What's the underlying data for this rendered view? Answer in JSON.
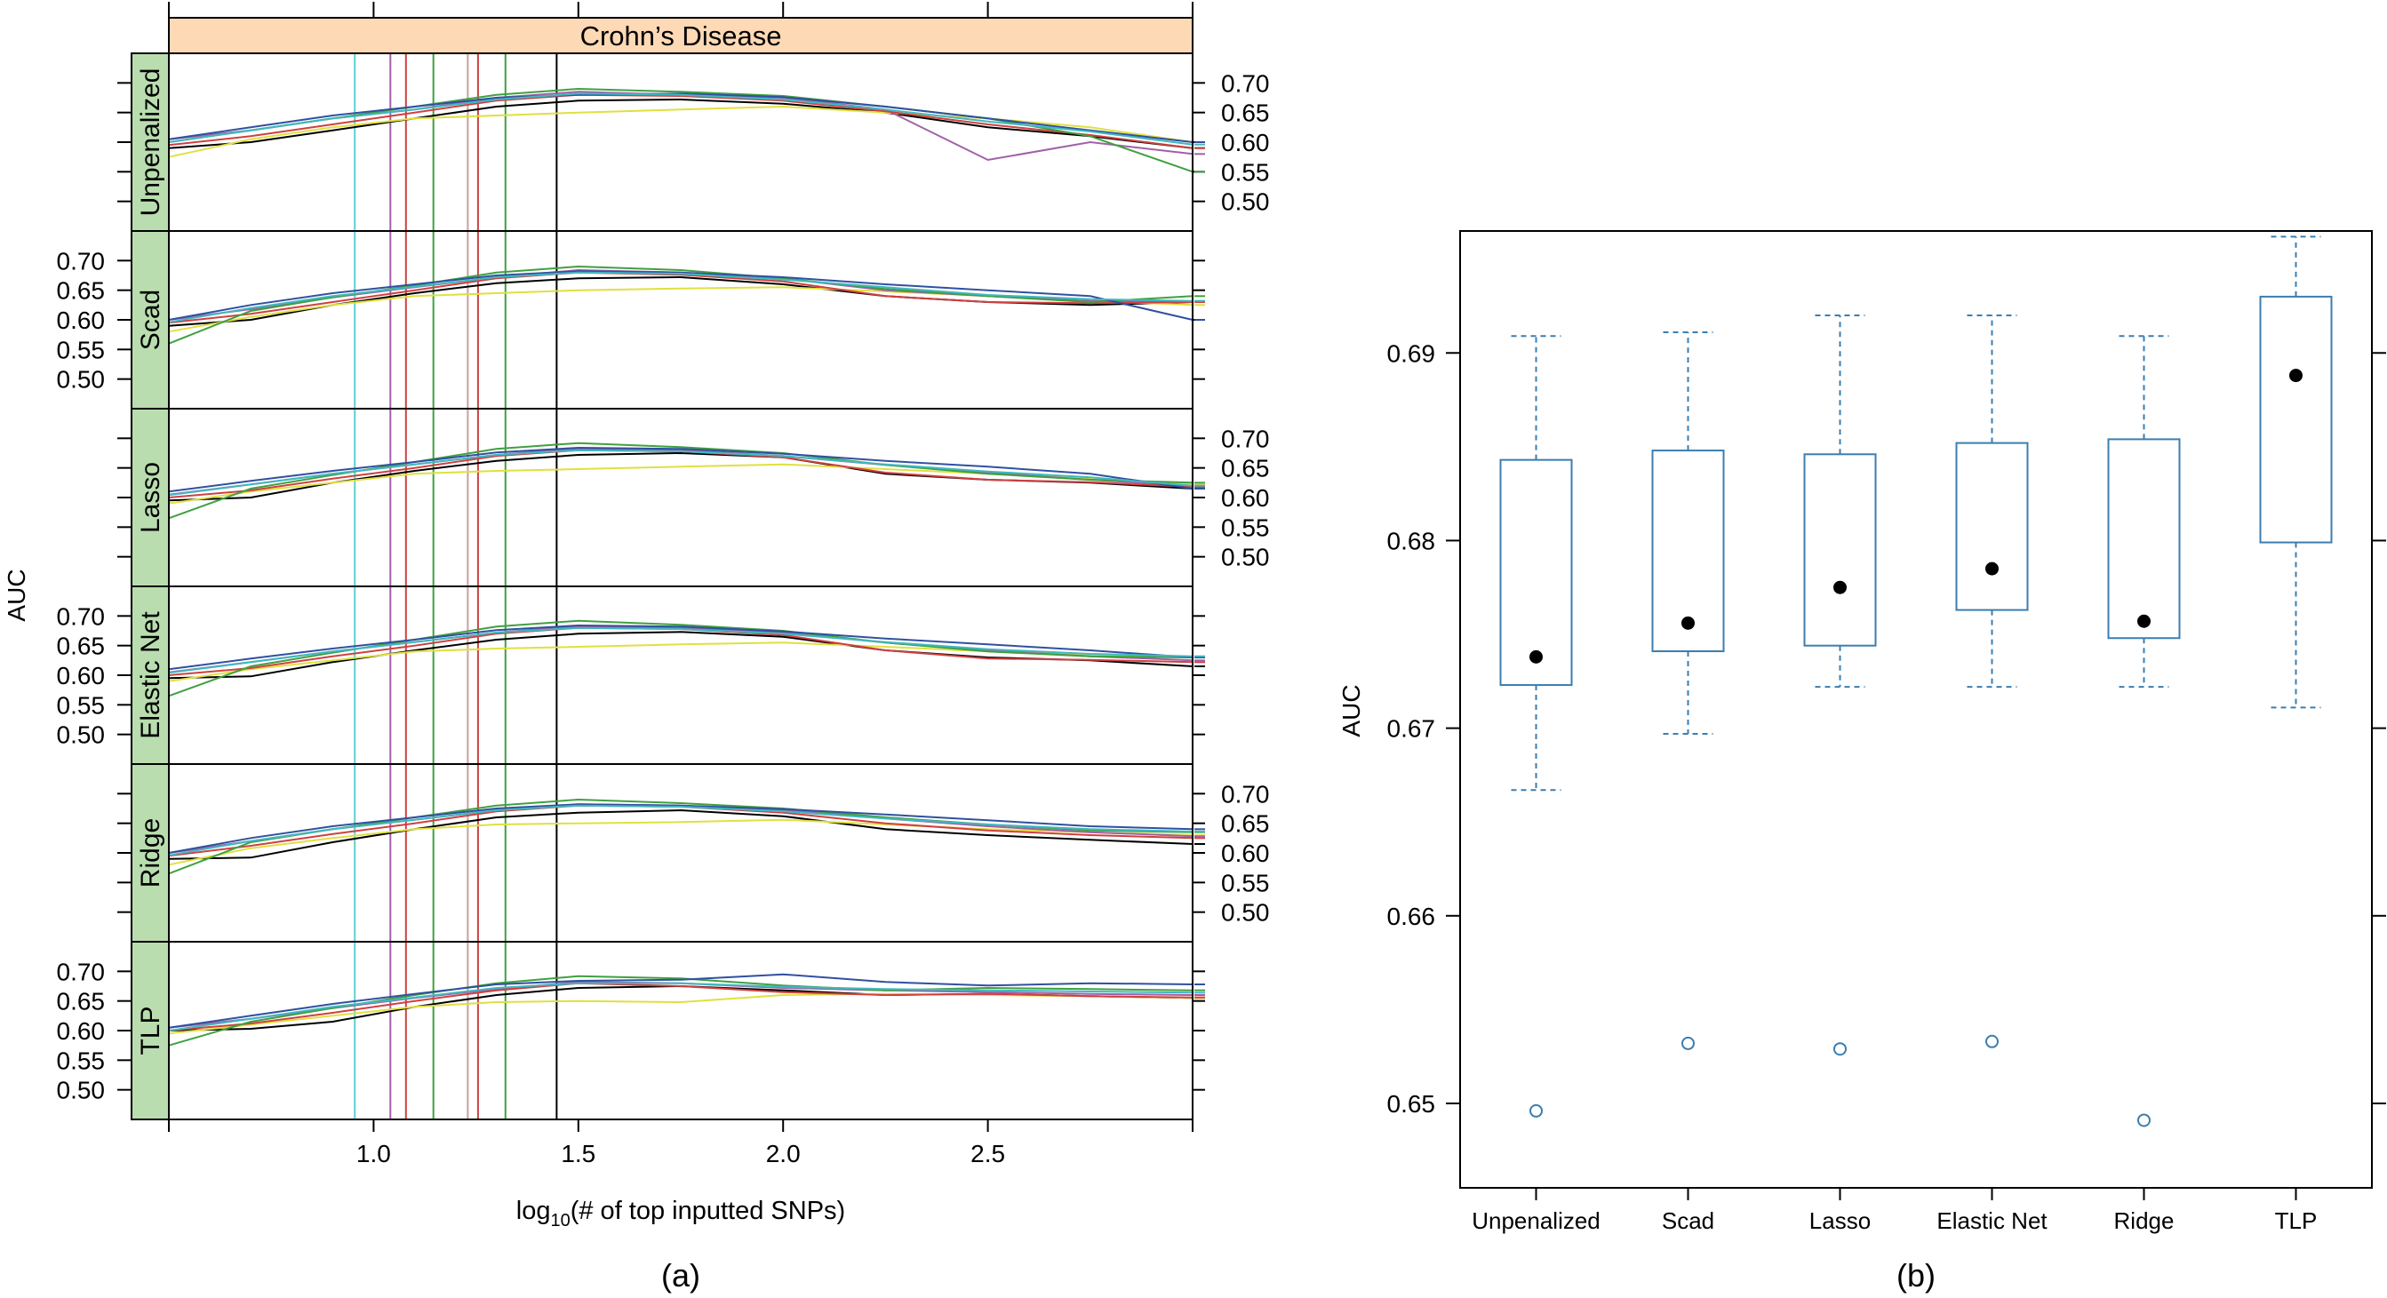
{
  "panels": {
    "a_label": "(a)",
    "b_label": "(b)"
  },
  "colors": {
    "strip_header": "#FDD9B5",
    "strip_side": "#B9DDAF",
    "box": "#3A7EB0"
  },
  "chart_data": [
    {
      "type": "line",
      "strip_title": "Crohn’s Disease",
      "xlabel_prefix": "log",
      "xlabel_sub": "10",
      "xlabel_suffix": "(# of top inputted SNPs)",
      "ylabel": "AUC",
      "xlim": [
        0.5,
        3.0
      ],
      "ylim": [
        0.45,
        0.75
      ],
      "x_ticks": [
        1.0,
        1.5,
        2.0,
        2.5
      ],
      "x_tick_labels": [
        "1.0",
        "1.5",
        "2.0",
        "2.5"
      ],
      "y_ticks": [
        0.7,
        0.65,
        0.6,
        0.55,
        0.5
      ],
      "y_tick_labels": [
        "0.70",
        "0.65",
        "0.60",
        "0.55",
        "0.50"
      ],
      "x": [
        0.5,
        0.7,
        0.9,
        1.1,
        1.3,
        1.5,
        1.75,
        2.0,
        2.25,
        2.5,
        2.75,
        3.0
      ],
      "selected_x": [
        {
          "x": 0.954,
          "color": "#5FD0D0"
        },
        {
          "x": 1.041,
          "color": "#A060A8"
        },
        {
          "x": 1.079,
          "color": "#D04040"
        },
        {
          "x": 1.146,
          "color": "#40A040"
        },
        {
          "x": 1.23,
          "color": "#C8A0A0"
        },
        {
          "x": 1.255,
          "color": "#D04040"
        },
        {
          "x": 1.322,
          "color": "#40A040"
        },
        {
          "x": 1.447,
          "color": "#000000"
        }
      ],
      "panels": [
        {
          "name": "Unpenalized",
          "series": [
            {
              "color": "#000000",
              "values": [
                0.59,
                0.6,
                0.62,
                0.64,
                0.66,
                0.67,
                0.672,
                0.665,
                0.65,
                0.625,
                0.61,
                0.59
              ]
            },
            {
              "color": "#E0E040",
              "values": [
                0.575,
                0.605,
                0.625,
                0.64,
                0.645,
                0.65,
                0.655,
                0.66,
                0.65,
                0.64,
                0.625,
                0.6
              ]
            },
            {
              "color": "#A060A8",
              "values": [
                0.605,
                0.62,
                0.64,
                0.655,
                0.675,
                0.685,
                0.68,
                0.675,
                0.655,
                0.57,
                0.6,
                0.58
              ]
            },
            {
              "color": "#D04040",
              "values": [
                0.595,
                0.61,
                0.63,
                0.65,
                0.67,
                0.68,
                0.678,
                0.67,
                0.652,
                0.63,
                0.612,
                0.59
              ]
            },
            {
              "color": "#40A040",
              "values": [
                0.6,
                0.62,
                0.64,
                0.66,
                0.68,
                0.69,
                0.685,
                0.678,
                0.66,
                0.64,
                0.61,
                0.55
              ]
            },
            {
              "color": "#3050A0",
              "values": [
                0.605,
                0.625,
                0.645,
                0.66,
                0.675,
                0.68,
                0.682,
                0.676,
                0.66,
                0.64,
                0.62,
                0.6
              ]
            },
            {
              "color": "#40B8C0",
              "values": [
                0.6,
                0.62,
                0.64,
                0.655,
                0.672,
                0.682,
                0.68,
                0.672,
                0.655,
                0.635,
                0.618,
                0.596
              ]
            }
          ]
        },
        {
          "name": "Scad",
          "series": [
            {
              "color": "#000000",
              "values": [
                0.59,
                0.6,
                0.625,
                0.645,
                0.662,
                0.67,
                0.672,
                0.66,
                0.64,
                0.63,
                0.625,
                0.63
              ]
            },
            {
              "color": "#E0E040",
              "values": [
                0.58,
                0.605,
                0.625,
                0.64,
                0.645,
                0.65,
                0.653,
                0.655,
                0.648,
                0.64,
                0.632,
                0.625
              ]
            },
            {
              "color": "#A060A8",
              "values": [
                0.6,
                0.618,
                0.638,
                0.655,
                0.672,
                0.684,
                0.68,
                0.67,
                0.65,
                0.64,
                0.632,
                0.63
              ]
            },
            {
              "color": "#D04040",
              "values": [
                0.595,
                0.61,
                0.63,
                0.65,
                0.67,
                0.68,
                0.676,
                0.665,
                0.64,
                0.63,
                0.628,
                0.63
              ]
            },
            {
              "color": "#40A040",
              "values": [
                0.56,
                0.615,
                0.638,
                0.658,
                0.68,
                0.69,
                0.684,
                0.67,
                0.652,
                0.64,
                0.63,
                0.64
              ]
            },
            {
              "color": "#3050A0",
              "values": [
                0.6,
                0.625,
                0.645,
                0.66,
                0.675,
                0.682,
                0.68,
                0.672,
                0.66,
                0.65,
                0.64,
                0.6
              ]
            },
            {
              "color": "#40B8C0",
              "values": [
                0.596,
                0.62,
                0.64,
                0.656,
                0.672,
                0.68,
                0.678,
                0.668,
                0.655,
                0.642,
                0.635,
                0.632
              ]
            }
          ]
        },
        {
          "name": "Lasso",
          "series": [
            {
              "color": "#000000",
              "values": [
                0.595,
                0.6,
                0.625,
                0.645,
                0.662,
                0.672,
                0.675,
                0.668,
                0.64,
                0.63,
                0.625,
                0.615
              ]
            },
            {
              "color": "#E0E040",
              "values": [
                0.59,
                0.61,
                0.625,
                0.64,
                0.645,
                0.648,
                0.652,
                0.656,
                0.648,
                0.64,
                0.632,
                0.622
              ]
            },
            {
              "color": "#A060A8",
              "values": [
                0.605,
                0.622,
                0.64,
                0.656,
                0.672,
                0.683,
                0.68,
                0.67,
                0.655,
                0.642,
                0.63,
                0.62
              ]
            },
            {
              "color": "#D04040",
              "values": [
                0.6,
                0.612,
                0.632,
                0.65,
                0.67,
                0.68,
                0.678,
                0.668,
                0.642,
                0.63,
                0.626,
                0.618
              ]
            },
            {
              "color": "#40A040",
              "values": [
                0.565,
                0.615,
                0.638,
                0.66,
                0.682,
                0.692,
                0.685,
                0.675,
                0.655,
                0.64,
                0.63,
                0.625
              ]
            },
            {
              "color": "#3050A0",
              "values": [
                0.61,
                0.628,
                0.645,
                0.66,
                0.676,
                0.684,
                0.682,
                0.674,
                0.662,
                0.652,
                0.64,
                0.615
              ]
            },
            {
              "color": "#40B8C0",
              "values": [
                0.604,
                0.622,
                0.64,
                0.656,
                0.672,
                0.68,
                0.678,
                0.67,
                0.656,
                0.644,
                0.634,
                0.62
              ]
            }
          ]
        },
        {
          "name": "Elastic Net",
          "series": [
            {
              "color": "#000000",
              "values": [
                0.595,
                0.598,
                0.622,
                0.642,
                0.66,
                0.67,
                0.673,
                0.665,
                0.642,
                0.63,
                0.625,
                0.615
              ]
            },
            {
              "color": "#E0E040",
              "values": [
                0.59,
                0.61,
                0.625,
                0.64,
                0.645,
                0.648,
                0.652,
                0.655,
                0.648,
                0.64,
                0.635,
                0.63
              ]
            },
            {
              "color": "#A060A8",
              "values": [
                0.605,
                0.622,
                0.64,
                0.656,
                0.672,
                0.683,
                0.68,
                0.672,
                0.655,
                0.642,
                0.632,
                0.625
              ]
            },
            {
              "color": "#D04040",
              "values": [
                0.6,
                0.612,
                0.632,
                0.65,
                0.67,
                0.68,
                0.678,
                0.668,
                0.642,
                0.628,
                0.626,
                0.622
              ]
            },
            {
              "color": "#40A040",
              "values": [
                0.565,
                0.615,
                0.638,
                0.66,
                0.682,
                0.692,
                0.685,
                0.675,
                0.655,
                0.64,
                0.632,
                0.63
              ]
            },
            {
              "color": "#3050A0",
              "values": [
                0.61,
                0.628,
                0.645,
                0.66,
                0.676,
                0.684,
                0.682,
                0.674,
                0.662,
                0.652,
                0.642,
                0.63
              ]
            },
            {
              "color": "#40B8C0",
              "values": [
                0.604,
                0.622,
                0.64,
                0.656,
                0.672,
                0.68,
                0.678,
                0.67,
                0.656,
                0.644,
                0.636,
                0.632
              ]
            }
          ]
        },
        {
          "name": "Ridge",
          "series": [
            {
              "color": "#000000",
              "values": [
                0.59,
                0.592,
                0.618,
                0.64,
                0.66,
                0.668,
                0.672,
                0.662,
                0.64,
                0.63,
                0.622,
                0.615
              ]
            },
            {
              "color": "#E0E040",
              "values": [
                0.58,
                0.608,
                0.625,
                0.64,
                0.648,
                0.65,
                0.652,
                0.656,
                0.648,
                0.64,
                0.635,
                0.63
              ]
            },
            {
              "color": "#A060A8",
              "values": [
                0.6,
                0.62,
                0.64,
                0.656,
                0.672,
                0.682,
                0.68,
                0.672,
                0.658,
                0.645,
                0.635,
                0.628
              ]
            },
            {
              "color": "#D04040",
              "values": [
                0.595,
                0.612,
                0.632,
                0.65,
                0.67,
                0.68,
                0.678,
                0.668,
                0.65,
                0.638,
                0.63,
                0.625
              ]
            },
            {
              "color": "#40A040",
              "values": [
                0.565,
                0.618,
                0.64,
                0.66,
                0.68,
                0.69,
                0.684,
                0.675,
                0.66,
                0.648,
                0.638,
                0.635
              ]
            },
            {
              "color": "#3050A0",
              "values": [
                0.6,
                0.625,
                0.645,
                0.66,
                0.675,
                0.682,
                0.68,
                0.674,
                0.665,
                0.655,
                0.645,
                0.64
              ]
            },
            {
              "color": "#40B8C0",
              "values": [
                0.596,
                0.62,
                0.64,
                0.656,
                0.672,
                0.68,
                0.678,
                0.67,
                0.658,
                0.648,
                0.64,
                0.636
              ]
            }
          ]
        },
        {
          "name": "TLP",
          "series": [
            {
              "color": "#000000",
              "values": [
                0.6,
                0.603,
                0.615,
                0.64,
                0.66,
                0.672,
                0.675,
                0.668,
                0.66,
                0.662,
                0.658,
                0.655
              ]
            },
            {
              "color": "#E0E040",
              "values": [
                0.595,
                0.61,
                0.625,
                0.64,
                0.648,
                0.65,
                0.648,
                0.66,
                0.662,
                0.66,
                0.658,
                0.655
              ]
            },
            {
              "color": "#A060A8",
              "values": [
                0.605,
                0.62,
                0.638,
                0.655,
                0.67,
                0.682,
                0.68,
                0.672,
                0.668,
                0.665,
                0.662,
                0.66
              ]
            },
            {
              "color": "#D04040",
              "values": [
                0.6,
                0.612,
                0.63,
                0.65,
                0.668,
                0.68,
                0.675,
                0.665,
                0.66,
                0.662,
                0.658,
                0.656
              ]
            },
            {
              "color": "#40A040",
              "values": [
                0.575,
                0.615,
                0.638,
                0.66,
                0.68,
                0.692,
                0.688,
                0.676,
                0.668,
                0.672,
                0.67,
                0.668
              ]
            },
            {
              "color": "#3050A0",
              "values": [
                0.605,
                0.625,
                0.645,
                0.662,
                0.678,
                0.684,
                0.686,
                0.695,
                0.682,
                0.676,
                0.68,
                0.678
              ]
            },
            {
              "color": "#40B8C0",
              "values": [
                0.6,
                0.62,
                0.64,
                0.656,
                0.672,
                0.68,
                0.68,
                0.674,
                0.67,
                0.668,
                0.666,
                0.664
              ]
            }
          ]
        }
      ]
    },
    {
      "type": "box",
      "ylabel": "AUC",
      "ylim": [
        0.6455,
        0.6965
      ],
      "y_ticks": [
        0.65,
        0.66,
        0.67,
        0.68,
        0.69
      ],
      "y_tick_labels": [
        "0.65",
        "0.66",
        "0.67",
        "0.68",
        "0.69"
      ],
      "categories": [
        "Unpenalized",
        "Scad",
        "Lasso",
        "Elastic Net",
        "Ridge",
        "TLP"
      ],
      "boxes": [
        {
          "whisker_low": 0.6667,
          "q1": 0.6723,
          "median": 0.6738,
          "q3": 0.6843,
          "whisker_high": 0.6909,
          "outliers": [
            0.6496
          ]
        },
        {
          "whisker_low": 0.6697,
          "q1": 0.6741,
          "median": 0.6756,
          "q3": 0.6848,
          "whisker_high": 0.6911,
          "outliers": [
            0.6532
          ]
        },
        {
          "whisker_low": 0.6722,
          "q1": 0.6744,
          "median": 0.6775,
          "q3": 0.6846,
          "whisker_high": 0.692,
          "outliers": [
            0.6529
          ]
        },
        {
          "whisker_low": 0.6722,
          "q1": 0.6763,
          "median": 0.6785,
          "q3": 0.6852,
          "whisker_high": 0.692,
          "outliers": [
            0.6533
          ]
        },
        {
          "whisker_low": 0.6722,
          "q1": 0.6748,
          "median": 0.6757,
          "q3": 0.6854,
          "whisker_high": 0.6909,
          "outliers": [
            0.6491
          ]
        },
        {
          "whisker_low": 0.6711,
          "q1": 0.6799,
          "median": 0.6888,
          "q3": 0.693,
          "whisker_high": 0.6962,
          "outliers": []
        }
      ]
    }
  ]
}
